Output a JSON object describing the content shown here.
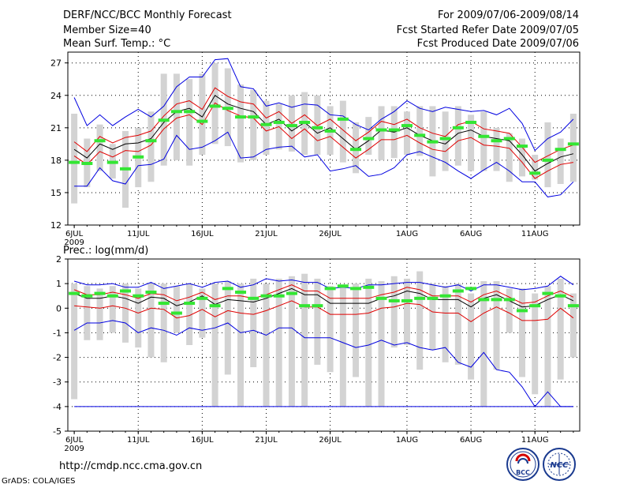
{
  "header": {
    "title": "DERF/NCC/BCC Monthly Forecast",
    "member_size": "Member Size=40",
    "variable": "Mean Surf. Temp.: °C",
    "forecast_period": "For 2009/07/06-2009/08/14",
    "fcst_started": "Fcst Started Refer Date 2009/07/05",
    "fcst_produced": "Fcst Produced Date 2009/07/06"
  },
  "footer": {
    "url": "http://cmdp.ncc.cma.gov.cn",
    "grads_credit": "GrADS: COLA/IGES",
    "logo_left_text": "BCC",
    "logo_right_text": "NCC"
  },
  "colors": {
    "box": "#d3d3d3",
    "median": "#33e633",
    "mean": "#000000",
    "inner": "#e00000",
    "outer": "#0000e0"
  },
  "chart_data": [
    {
      "type": "box-ensemble",
      "title": "Mean Surf. Temp.: °C",
      "ylim": [
        12,
        28
      ],
      "yticks": [
        12,
        15,
        18,
        21,
        24,
        27
      ],
      "xlabels": [
        "6JUL",
        "11JUL",
        "16JUL",
        "21JUL",
        "26JUL",
        "1AUG",
        "6AUG",
        "11AUG"
      ],
      "xlabel_day_index": [
        0,
        5,
        10,
        15,
        20,
        26,
        31,
        36
      ],
      "year_label": "2009",
      "days": 40,
      "box_low": [
        14.0,
        15.5,
        17.0,
        16.3,
        13.6,
        15.5,
        16.0,
        17.5,
        18.0,
        17.5,
        18.5,
        19.5,
        19.3,
        17.8,
        18.0,
        18.5,
        19.0,
        18.8,
        18.5,
        18.5,
        18.5,
        17.8,
        16.8,
        18.5,
        18.0,
        18.2,
        18.5,
        18.4,
        16.5,
        17.0,
        17.5,
        17.0,
        17.0,
        17.0,
        16.0,
        16.5,
        16.2,
        15.5,
        15.8,
        16.0
      ],
      "box_high": [
        22.3,
        20.0,
        21.3,
        19.5,
        20.7,
        21.0,
        22.5,
        26.0,
        26.0,
        25.5,
        26.0,
        27.0,
        26.5,
        25.0,
        24.5,
        23.5,
        23.2,
        24.0,
        24.3,
        24.0,
        23.0,
        23.5,
        21.5,
        22.0,
        23.0,
        23.0,
        22.5,
        23.0,
        23.0,
        22.5,
        23.0,
        22.2,
        22.5,
        21.0,
        20.5,
        20.0,
        18.5,
        21.5,
        20.0,
        22.3
      ],
      "median": [
        17.8,
        17.7,
        19.8,
        17.8,
        17.2,
        18.3,
        19.8,
        21.7,
        22.5,
        22.5,
        21.6,
        23.0,
        22.8,
        22.0,
        22.0,
        21.3,
        21.5,
        21.2,
        21.5,
        21.0,
        20.7,
        21.8,
        19.0,
        20.0,
        20.8,
        20.8,
        21.2,
        20.3,
        19.7,
        20.0,
        21.0,
        21.5,
        20.2,
        19.8,
        20.0,
        19.3,
        16.8,
        18.0,
        19.0,
        19.5
      ],
      "mean": [
        19.0,
        18.2,
        19.5,
        19.0,
        19.5,
        19.6,
        20.0,
        21.5,
        22.5,
        22.8,
        22.0,
        24.0,
        23.2,
        22.8,
        22.5,
        21.3,
        21.8,
        20.7,
        21.5,
        20.5,
        21.0,
        20.0,
        19.0,
        19.8,
        20.8,
        20.6,
        21.0,
        20.3,
        19.8,
        19.5,
        20.5,
        20.8,
        20.2,
        20.0,
        19.8,
        18.5,
        17.0,
        17.7,
        18.3,
        18.6
      ],
      "inner_low": [
        18.4,
        17.6,
        18.8,
        18.3,
        18.9,
        18.8,
        19.4,
        20.9,
        21.9,
        22.2,
        21.3,
        23.3,
        22.6,
        22.1,
        21.9,
        20.7,
        21.1,
        20.0,
        20.9,
        19.8,
        20.2,
        19.2,
        18.2,
        19.0,
        19.9,
        19.9,
        20.3,
        19.6,
        19.0,
        18.8,
        19.8,
        20.1,
        19.4,
        19.3,
        19.1,
        17.8,
        16.3,
        17.0,
        17.6,
        17.8
      ],
      "inner_high": [
        19.7,
        18.8,
        20.2,
        19.6,
        20.1,
        20.3,
        20.7,
        22.1,
        23.2,
        23.5,
        22.7,
        24.7,
        23.9,
        23.4,
        23.2,
        21.9,
        22.5,
        21.4,
        22.2,
        21.2,
        21.8,
        20.8,
        19.8,
        20.6,
        21.6,
        21.3,
        21.8,
        21.0,
        20.5,
        20.2,
        21.3,
        21.6,
        20.9,
        20.7,
        20.5,
        19.2,
        17.8,
        18.4,
        19.0,
        19.4
      ],
      "outer_low": [
        15.6,
        15.6,
        17.3,
        16.1,
        15.8,
        17.5,
        17.6,
        18.1,
        20.3,
        19.0,
        19.2,
        19.8,
        20.6,
        18.2,
        18.3,
        19.0,
        19.2,
        19.3,
        18.3,
        18.5,
        17.0,
        17.2,
        17.5,
        16.5,
        16.7,
        17.3,
        18.5,
        18.8,
        18.3,
        17.8,
        17.0,
        16.3,
        17.1,
        17.8,
        17.0,
        16.0,
        16.0,
        14.6,
        14.8,
        16.0
      ],
      "outer_high": [
        23.8,
        21.2,
        22.2,
        21.2,
        22.0,
        22.7,
        22.0,
        23.0,
        24.8,
        25.7,
        25.7,
        27.3,
        27.4,
        24.8,
        24.6,
        23.0,
        23.3,
        22.9,
        23.2,
        23.1,
        22.2,
        22.1,
        21.3,
        20.8,
        21.8,
        22.5,
        23.5,
        22.8,
        22.5,
        22.9,
        22.7,
        22.5,
        22.6,
        22.2,
        22.8,
        21.4,
        18.9,
        20.0,
        20.6,
        21.8
      ]
    },
    {
      "type": "box-ensemble",
      "title": "Prec.: log(mm/d)",
      "ylim": [
        -5,
        2
      ],
      "yticks": [
        -5,
        -4,
        -3,
        -2,
        -1,
        0,
        1,
        2
      ],
      "xlabels": [
        "6JUL",
        "11JUL",
        "16JUL",
        "21JUL",
        "26JUL",
        "1AUG",
        "6AUG",
        "11AUG"
      ],
      "xlabel_day_index": [
        0,
        5,
        10,
        15,
        20,
        26,
        31,
        36
      ],
      "year_label": "2009",
      "days": 40,
      "floor": -4,
      "box_low": [
        -3.7,
        -1.3,
        -1.3,
        -1.0,
        -1.4,
        -1.6,
        -2.0,
        -2.2,
        -1.0,
        -1.5,
        -1.2,
        -4.0,
        -2.7,
        -4.0,
        -2.4,
        -4.0,
        -4.0,
        -4.0,
        -4.0,
        -2.3,
        -2.6,
        -4.0,
        -2.8,
        -4.0,
        -4.0,
        -1.6,
        -1.5,
        -2.5,
        -1.7,
        -2.2,
        -2.3,
        -2.9,
        -4.0,
        -2.5,
        -1.0,
        -2.8,
        -3.5,
        -4.0,
        -2.9,
        -2.0
      ],
      "box_high": [
        1.0,
        0.9,
        0.8,
        0.9,
        1.0,
        0.8,
        1.0,
        1.0,
        0.9,
        1.0,
        0.8,
        1.0,
        1.1,
        1.0,
        1.2,
        1.0,
        1.2,
        1.3,
        1.4,
        1.2,
        0.9,
        0.9,
        1.0,
        1.2,
        1.1,
        1.3,
        1.2,
        1.5,
        1.0,
        0.9,
        1.0,
        0.6,
        1.1,
        1.1,
        0.8,
        0.8,
        0.6,
        0.9,
        1.2,
        0.6
      ],
      "median": [
        0.6,
        0.5,
        0.6,
        0.5,
        0.7,
        0.5,
        0.65,
        0.2,
        -0.2,
        0.2,
        0.4,
        0.1,
        0.8,
        0.65,
        0.4,
        0.5,
        0.5,
        0.6,
        0.1,
        0.1,
        0.8,
        0.9,
        0.8,
        0.85,
        0.4,
        0.3,
        0.3,
        0.4,
        0.4,
        0.5,
        0.7,
        0.8,
        0.35,
        0.35,
        0.35,
        -0.1,
        0.1,
        0.6,
        0.5,
        0.1
      ],
      "mean": [
        0.6,
        0.4,
        0.4,
        0.5,
        0.4,
        0.2,
        0.45,
        0.4,
        0.1,
        0.25,
        0.5,
        0.15,
        0.35,
        0.3,
        0.25,
        0.4,
        0.6,
        0.8,
        0.55,
        0.55,
        0.2,
        0.2,
        0.2,
        0.2,
        0.4,
        0.5,
        0.7,
        0.6,
        0.35,
        0.35,
        0.35,
        0.05,
        0.4,
        0.55,
        0.3,
        0.05,
        0.1,
        0.35,
        0.55,
        0.3
      ],
      "inner_low": [
        0.1,
        0.05,
        0.0,
        0.1,
        0.0,
        -0.2,
        0.0,
        -0.05,
        -0.4,
        -0.3,
        -0.05,
        -0.35,
        -0.1,
        -0.2,
        -0.25,
        -0.1,
        0.1,
        0.3,
        0.05,
        0.05,
        -0.25,
        -0.25,
        -0.25,
        -0.2,
        0.0,
        0.05,
        0.2,
        0.15,
        -0.15,
        -0.2,
        -0.2,
        -0.55,
        -0.2,
        0.05,
        -0.2,
        -0.5,
        -0.5,
        -0.45,
        0.0,
        -0.4
      ],
      "inner_high": [
        0.75,
        0.55,
        0.55,
        0.65,
        0.55,
        0.4,
        0.6,
        0.55,
        0.3,
        0.45,
        0.65,
        0.35,
        0.5,
        0.5,
        0.4,
        0.55,
        0.75,
        0.95,
        0.7,
        0.7,
        0.4,
        0.4,
        0.4,
        0.4,
        0.55,
        0.65,
        0.85,
        0.75,
        0.5,
        0.5,
        0.5,
        0.25,
        0.55,
        0.7,
        0.45,
        0.2,
        0.25,
        0.5,
        0.7,
        0.45
      ],
      "outer_low": [
        -0.9,
        -0.6,
        -0.6,
        -0.5,
        -0.6,
        -1.0,
        -0.8,
        -0.9,
        -1.1,
        -0.8,
        -0.9,
        -0.8,
        -0.6,
        -1.0,
        -0.9,
        -1.1,
        -0.8,
        -0.8,
        -1.2,
        -1.2,
        -1.2,
        -1.4,
        -1.6,
        -1.5,
        -1.3,
        -1.5,
        -1.4,
        -1.6,
        -1.7,
        -1.6,
        -2.2,
        -2.4,
        -1.8,
        -2.5,
        -2.6,
        -3.2,
        -4.0,
        -3.4,
        -4.0,
        -4.0
      ],
      "outer_high": [
        1.1,
        0.95,
        0.95,
        1.0,
        0.85,
        0.85,
        1.05,
        0.8,
        0.9,
        1.0,
        0.85,
        1.05,
        1.1,
        0.85,
        0.95,
        1.2,
        1.1,
        1.15,
        1.05,
        1.05,
        0.8,
        0.85,
        0.8,
        0.95,
        0.95,
        1.0,
        1.05,
        1.05,
        0.95,
        0.85,
        0.95,
        0.7,
        0.95,
        0.95,
        0.85,
        0.75,
        0.8,
        0.9,
        1.3,
        0.95
      ]
    }
  ]
}
